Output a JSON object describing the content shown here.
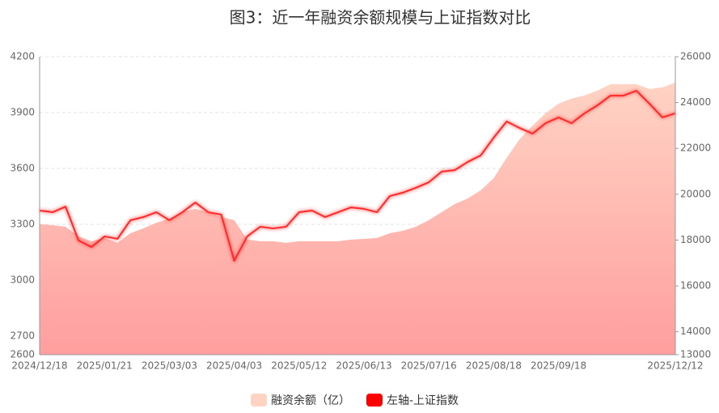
{
  "chart_data": {
    "type": "line",
    "title": "图3：近一年融资余额规模与上证指数对比",
    "categories": [
      "2024/12/18",
      null,
      null,
      null,
      null,
      "2025/01/21",
      null,
      null,
      null,
      null,
      "2025/03/03",
      null,
      null,
      null,
      null,
      "2025/04/03",
      null,
      null,
      null,
      null,
      "2025/05/12",
      null,
      null,
      null,
      null,
      "2025/06/13",
      null,
      null,
      null,
      null,
      "2025/07/16",
      null,
      null,
      null,
      null,
      "2025/08/18",
      null,
      null,
      null,
      null,
      "2025/09/18",
      null,
      null,
      null,
      null,
      null,
      null,
      null,
      null,
      "2025/12/12"
    ],
    "series": [
      {
        "name": "融资余额（亿）",
        "color": "#ffd3c4",
        "axis": "y2",
        "type": "area",
        "values": [
          18690,
          18650,
          18580,
          18160,
          17950,
          18090,
          17880,
          18300,
          18510,
          18760,
          18930,
          19220,
          19360,
          19220,
          19010,
          18870,
          18020,
          17950,
          17950,
          17880,
          17950,
          17950,
          17950,
          17950,
          18020,
          18050,
          18090,
          18300,
          18410,
          18580,
          18870,
          19220,
          19570,
          19820,
          20170,
          20700,
          21590,
          22400,
          23000,
          23530,
          23950,
          24170,
          24310,
          24520,
          24800,
          24800,
          24800,
          24590,
          24660,
          24870
        ]
      },
      {
        "name": "左轴-上证指数",
        "color": "#ff2a2a",
        "type": "line",
        "values": [
          3374,
          3365,
          3395,
          3213,
          3178,
          3235,
          3222,
          3322,
          3339,
          3365,
          3322,
          3365,
          3417,
          3365,
          3352,
          3104,
          3235,
          3287,
          3278,
          3287,
          3365,
          3374,
          3339,
          3365,
          3391,
          3383,
          3365,
          3452,
          3470,
          3496,
          3526,
          3583,
          3591,
          3635,
          3670,
          3765,
          3852,
          3817,
          3787,
          3843,
          3874,
          3843,
          3896,
          3939,
          3991,
          3991,
          4017,
          3948,
          3874,
          3896
        ]
      }
    ],
    "ylim": [
      2600,
      4200
    ],
    "yticks": [
      2600,
      2700,
      3000,
      3300,
      3600,
      3900,
      4200
    ],
    "y2lim": [
      13000,
      26000
    ],
    "y2ticks": [
      13000,
      14000,
      16000,
      18000,
      20000,
      22000,
      24000,
      26000
    ],
    "grid": true
  }
}
